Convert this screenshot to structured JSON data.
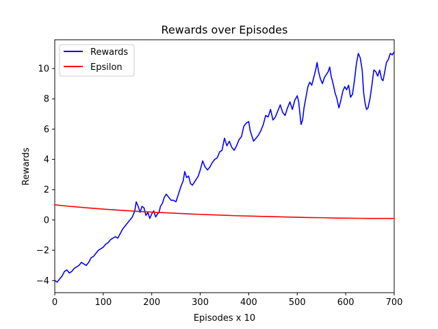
{
  "chart_data": {
    "type": "line",
    "title": "Rewards over Episodes",
    "xlabel": "Episodes x 10",
    "ylabel": "Rewards",
    "xlim": [
      0,
      700
    ],
    "ylim": [
      -4.8,
      11.9
    ],
    "xticks": [
      0,
      100,
      200,
      300,
      400,
      500,
      600,
      700
    ],
    "xtick_labels": [
      "0",
      "100",
      "200",
      "300",
      "400",
      "500",
      "600",
      "700"
    ],
    "yticks": [
      -4,
      -2,
      0,
      2,
      4,
      6,
      8,
      10
    ],
    "ytick_labels": [
      "−4",
      "−2",
      "0",
      "2",
      "4",
      "6",
      "8",
      "10"
    ],
    "grid": false,
    "legend_position": "top-left",
    "series": [
      {
        "name": "Rewards",
        "color": "#0000ff",
        "points": [
          [
            0,
            -4.0
          ],
          [
            5,
            -4.1
          ],
          [
            10,
            -3.9
          ],
          [
            15,
            -3.7
          ],
          [
            20,
            -3.4
          ],
          [
            25,
            -3.3
          ],
          [
            30,
            -3.5
          ],
          [
            35,
            -3.4
          ],
          [
            40,
            -3.2
          ],
          [
            45,
            -3.1
          ],
          [
            50,
            -3.0
          ],
          [
            55,
            -2.8
          ],
          [
            60,
            -2.9
          ],
          [
            65,
            -3.0
          ],
          [
            70,
            -2.8
          ],
          [
            75,
            -2.5
          ],
          [
            80,
            -2.4
          ],
          [
            85,
            -2.2
          ],
          [
            90,
            -2.0
          ],
          [
            95,
            -1.9
          ],
          [
            100,
            -1.8
          ],
          [
            105,
            -1.6
          ],
          [
            110,
            -1.5
          ],
          [
            115,
            -1.3
          ],
          [
            120,
            -1.2
          ],
          [
            125,
            -1.1
          ],
          [
            130,
            -1.2
          ],
          [
            135,
            -0.9
          ],
          [
            140,
            -0.6
          ],
          [
            145,
            -0.4
          ],
          [
            150,
            -0.2
          ],
          [
            155,
            0.0
          ],
          [
            160,
            0.2
          ],
          [
            165,
            0.6
          ],
          [
            168,
            1.2
          ],
          [
            172,
            0.9
          ],
          [
            176,
            0.5
          ],
          [
            180,
            0.9
          ],
          [
            184,
            0.8
          ],
          [
            188,
            0.3
          ],
          [
            192,
            0.5
          ],
          [
            196,
            0.1
          ],
          [
            200,
            0.4
          ],
          [
            204,
            0.6
          ],
          [
            208,
            0.2
          ],
          [
            212,
            0.4
          ],
          [
            215,
            0.5
          ],
          [
            218,
            0.9
          ],
          [
            222,
            1.1
          ],
          [
            226,
            1.5
          ],
          [
            230,
            1.7
          ],
          [
            235,
            1.5
          ],
          [
            240,
            1.3
          ],
          [
            245,
            1.3
          ],
          [
            250,
            1.2
          ],
          [
            255,
            1.7
          ],
          [
            260,
            2.2
          ],
          [
            265,
            2.6
          ],
          [
            268,
            3.2
          ],
          [
            272,
            2.8
          ],
          [
            276,
            2.9
          ],
          [
            280,
            2.4
          ],
          [
            284,
            2.3
          ],
          [
            288,
            2.5
          ],
          [
            292,
            2.7
          ],
          [
            296,
            2.9
          ],
          [
            300,
            3.3
          ],
          [
            305,
            3.9
          ],
          [
            310,
            3.5
          ],
          [
            315,
            3.3
          ],
          [
            320,
            3.5
          ],
          [
            325,
            3.8
          ],
          [
            330,
            4.0
          ],
          [
            335,
            4.1
          ],
          [
            340,
            4.5
          ],
          [
            345,
            4.6
          ],
          [
            350,
            5.4
          ],
          [
            355,
            4.9
          ],
          [
            360,
            5.2
          ],
          [
            365,
            4.8
          ],
          [
            370,
            4.6
          ],
          [
            375,
            4.9
          ],
          [
            380,
            5.3
          ],
          [
            385,
            5.5
          ],
          [
            390,
            6.2
          ],
          [
            395,
            6.4
          ],
          [
            400,
            6.5
          ],
          [
            403,
            5.9
          ],
          [
            406,
            5.6
          ],
          [
            410,
            5.2
          ],
          [
            415,
            5.4
          ],
          [
            420,
            5.6
          ],
          [
            425,
            5.9
          ],
          [
            430,
            6.3
          ],
          [
            435,
            6.9
          ],
          [
            440,
            6.8
          ],
          [
            445,
            7.3
          ],
          [
            450,
            6.6
          ],
          [
            455,
            6.8
          ],
          [
            460,
            7.2
          ],
          [
            465,
            7.6
          ],
          [
            470,
            7.1
          ],
          [
            475,
            6.9
          ],
          [
            480,
            7.4
          ],
          [
            485,
            7.8
          ],
          [
            490,
            7.3
          ],
          [
            495,
            7.9
          ],
          [
            500,
            8.2
          ],
          [
            503,
            7.8
          ],
          [
            506,
            6.9
          ],
          [
            508,
            6.3
          ],
          [
            511,
            6.6
          ],
          [
            514,
            7.4
          ],
          [
            518,
            8.1
          ],
          [
            522,
            8.8
          ],
          [
            526,
            9.1
          ],
          [
            530,
            8.9
          ],
          [
            534,
            9.4
          ],
          [
            538,
            9.9
          ],
          [
            541,
            10.4
          ],
          [
            544,
            9.8
          ],
          [
            548,
            9.3
          ],
          [
            552,
            9.0
          ],
          [
            556,
            9.4
          ],
          [
            560,
            9.6
          ],
          [
            564,
            9.8
          ],
          [
            567,
            10.1
          ],
          [
            570,
            9.5
          ],
          [
            574,
            9.0
          ],
          [
            578,
            8.4
          ],
          [
            582,
            8.0
          ],
          [
            586,
            7.4
          ],
          [
            590,
            7.9
          ],
          [
            594,
            8.5
          ],
          [
            598,
            8.8
          ],
          [
            602,
            8.6
          ],
          [
            606,
            8.9
          ],
          [
            610,
            8.1
          ],
          [
            614,
            8.3
          ],
          [
            618,
            9.2
          ],
          [
            622,
            10.3
          ],
          [
            626,
            11.0
          ],
          [
            630,
            10.7
          ],
          [
            634,
            9.9
          ],
          [
            637,
            8.4
          ],
          [
            640,
            7.7
          ],
          [
            643,
            7.3
          ],
          [
            646,
            7.4
          ],
          [
            650,
            8.0
          ],
          [
            654,
            8.9
          ],
          [
            658,
            9.9
          ],
          [
            662,
            9.8
          ],
          [
            666,
            9.5
          ],
          [
            670,
            9.9
          ],
          [
            674,
            9.3
          ],
          [
            677,
            9.2
          ],
          [
            680,
            9.7
          ],
          [
            684,
            10.4
          ],
          [
            688,
            10.6
          ],
          [
            692,
            11.0
          ],
          [
            696,
            10.9
          ],
          [
            700,
            11.1
          ]
        ]
      },
      {
        "name": "Epsilon",
        "color": "#ff0000",
        "points": [
          [
            0,
            1.0
          ],
          [
            25,
            0.92
          ],
          [
            50,
            0.85
          ],
          [
            75,
            0.78
          ],
          [
            100,
            0.72
          ],
          [
            125,
            0.66
          ],
          [
            150,
            0.61
          ],
          [
            175,
            0.56
          ],
          [
            200,
            0.52
          ],
          [
            225,
            0.48
          ],
          [
            250,
            0.44
          ],
          [
            275,
            0.4
          ],
          [
            300,
            0.37
          ],
          [
            325,
            0.34
          ],
          [
            350,
            0.31
          ],
          [
            375,
            0.28
          ],
          [
            400,
            0.26
          ],
          [
            425,
            0.24
          ],
          [
            450,
            0.22
          ],
          [
            475,
            0.2
          ],
          [
            500,
            0.18
          ],
          [
            525,
            0.16
          ],
          [
            550,
            0.15
          ],
          [
            575,
            0.13
          ],
          [
            600,
            0.12
          ],
          [
            625,
            0.11
          ],
          [
            650,
            0.1
          ],
          [
            675,
            0.1
          ],
          [
            700,
            0.1
          ]
        ]
      }
    ]
  }
}
